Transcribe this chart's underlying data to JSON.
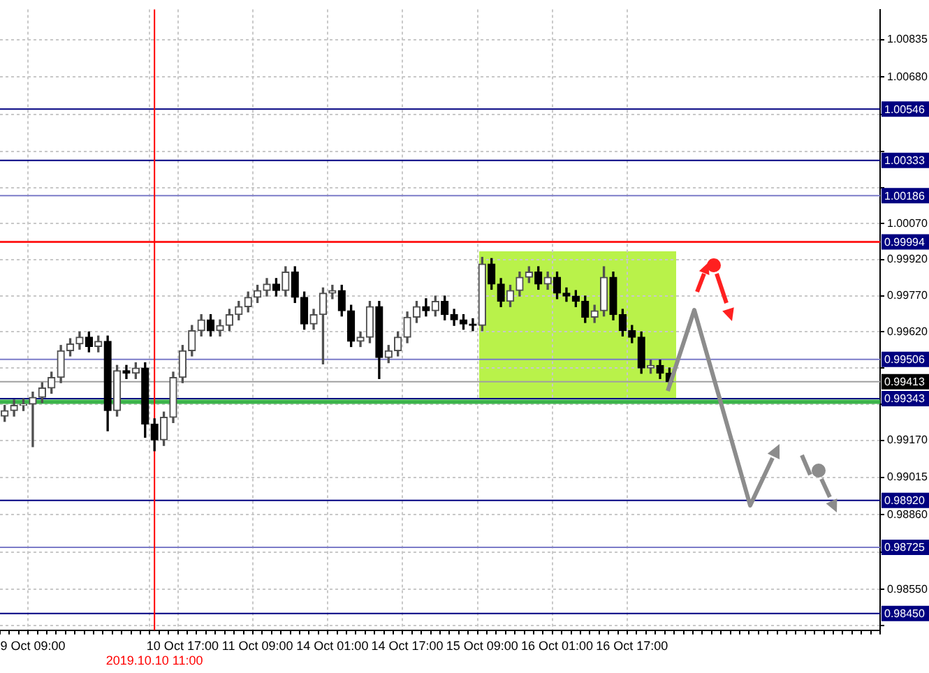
{
  "chart_data": {
    "type": "candlestick",
    "categories": [
      null,
      null,
      null,
      "9 Oct 09:00",
      null,
      null,
      null,
      null,
      null,
      null,
      null,
      null,
      null,
      null,
      null,
      null,
      "2019.10.10 11:00",
      null,
      null,
      "10 Oct 17:00",
      null,
      null,
      null,
      null,
      null,
      null,
      null,
      "11 Oct 09:00",
      null,
      null,
      null,
      null,
      null,
      null,
      null,
      "14 Oct 01:00",
      null,
      null,
      null,
      null,
      null,
      null,
      null,
      "14 Oct 17:00",
      null,
      null,
      null,
      null,
      null,
      null,
      null,
      "15 Oct 09:00",
      null,
      null,
      null,
      null,
      null,
      null,
      null,
      "16 Oct 01:00",
      null,
      null,
      null,
      null,
      null,
      null,
      null,
      "16 Oct 17:00",
      null,
      null,
      null,
      null,
      null,
      null,
      null,
      null,
      null,
      null,
      null,
      null,
      null,
      null,
      null,
      null,
      null,
      null,
      null,
      null,
      null,
      null,
      null,
      null,
      null,
      null
    ],
    "ohlc": [
      [
        0.9927,
        0.99315,
        0.99248,
        0.99293
      ],
      [
        0.99293,
        0.99337,
        0.9927,
        0.99315
      ],
      [
        0.99315,
        0.99342,
        0.99293,
        0.9932
      ],
      [
        0.9932,
        0.9937,
        0.99143,
        0.99348
      ],
      [
        0.99348,
        0.99409,
        0.99326,
        0.99387
      ],
      [
        0.99387,
        0.99453,
        0.99365,
        0.99431
      ],
      [
        0.99431,
        0.99564,
        0.99409,
        0.99542
      ],
      [
        0.99542,
        0.99592,
        0.9952,
        0.9957
      ],
      [
        0.9957,
        0.9962,
        0.99548,
        0.99598
      ],
      [
        0.99598,
        0.9962,
        0.99537,
        0.99559
      ],
      [
        0.99559,
        0.99603,
        0.99537,
        0.99581
      ],
      [
        0.99581,
        0.99603,
        0.99209,
        0.99293
      ],
      [
        0.99293,
        0.99481,
        0.9927,
        0.99459
      ],
      [
        0.99459,
        0.99481,
        0.99426,
        0.99448
      ],
      [
        0.99448,
        0.99492,
        0.99426,
        0.9947
      ],
      [
        0.9947,
        0.99492,
        0.99182,
        0.99237
      ],
      [
        0.99237,
        0.99259,
        0.99126,
        0.99171
      ],
      [
        0.99171,
        0.99287,
        0.99148,
        0.99265
      ],
      [
        0.99265,
        0.99453,
        0.99243,
        0.99431
      ],
      [
        0.99431,
        0.99564,
        0.99409,
        0.99542
      ],
      [
        0.99542,
        0.99647,
        0.9952,
        0.99625
      ],
      [
        0.99625,
        0.99692,
        0.99603,
        0.9967
      ],
      [
        0.9967,
        0.99692,
        0.99603,
        0.99625
      ],
      [
        0.99625,
        0.9967,
        0.99603,
        0.99647
      ],
      [
        0.99647,
        0.99714,
        0.99625,
        0.99692
      ],
      [
        0.99692,
        0.99747,
        0.9967,
        0.99725
      ],
      [
        0.99725,
        0.99786,
        0.99703,
        0.99764
      ],
      [
        0.99764,
        0.99814,
        0.99742,
        0.99792
      ],
      [
        0.99792,
        0.99842,
        0.99769,
        0.99819
      ],
      [
        0.99819,
        0.99842,
        0.99769,
        0.99792
      ],
      [
        0.99792,
        0.99891,
        0.99769,
        0.99869
      ],
      [
        0.99869,
        0.99891,
        0.99742,
        0.99764
      ],
      [
        0.99764,
        0.99786,
        0.99631,
        0.99653
      ],
      [
        0.99653,
        0.99714,
        0.99631,
        0.99692
      ],
      [
        0.99692,
        0.99803,
        0.99487,
        0.99781
      ],
      [
        0.99781,
        0.99814,
        0.99758,
        0.99792
      ],
      [
        0.99792,
        0.99814,
        0.99686,
        0.99708
      ],
      [
        0.99708,
        0.99731,
        0.99559,
        0.99581
      ],
      [
        0.99581,
        0.9962,
        0.99559,
        0.99598
      ],
      [
        0.99598,
        0.99747,
        0.99575,
        0.99725
      ],
      [
        0.99725,
        0.99747,
        0.99426,
        0.99514
      ],
      [
        0.99514,
        0.99564,
        0.99492,
        0.99542
      ],
      [
        0.99542,
        0.9962,
        0.9952,
        0.99598
      ],
      [
        0.99598,
        0.99703,
        0.99575,
        0.99681
      ],
      [
        0.99681,
        0.99747,
        0.99659,
        0.99725
      ],
      [
        0.99725,
        0.99758,
        0.99686,
        0.99708
      ],
      [
        0.99708,
        0.99769,
        0.99686,
        0.99747
      ],
      [
        0.99747,
        0.99769,
        0.9967,
        0.99692
      ],
      [
        0.99692,
        0.99714,
        0.99647,
        0.9967
      ],
      [
        0.9967,
        0.99692,
        0.99631,
        0.99653
      ],
      [
        0.99653,
        0.99675,
        0.99625,
        0.99647
      ],
      [
        0.99647,
        0.9993,
        0.99625,
        0.99902
      ],
      [
        0.99902,
        0.99925,
        0.99797,
        0.99819
      ],
      [
        0.99819,
        0.99842,
        0.99725,
        0.99747
      ],
      [
        0.99747,
        0.99814,
        0.99725,
        0.99792
      ],
      [
        0.99792,
        0.99869,
        0.99769,
        0.99847
      ],
      [
        0.99847,
        0.99891,
        0.99825,
        0.99869
      ],
      [
        0.99869,
        0.99891,
        0.99797,
        0.99819
      ],
      [
        0.99819,
        0.99869,
        0.99797,
        0.99847
      ],
      [
        0.99847,
        0.99869,
        0.99758,
        0.99781
      ],
      [
        0.99781,
        0.99803,
        0.99747,
        0.99769
      ],
      [
        0.99769,
        0.99792,
        0.99725,
        0.99747
      ],
      [
        0.99747,
        0.99769,
        0.99659,
        0.99681
      ],
      [
        0.99681,
        0.99731,
        0.99659,
        0.99708
      ],
      [
        0.99708,
        0.99891,
        0.99686,
        0.99847
      ],
      [
        0.99847,
        0.99869,
        0.9967,
        0.99692
      ],
      [
        0.99692,
        0.99714,
        0.99603,
        0.99625
      ],
      [
        0.99625,
        0.99647,
        0.99575,
        0.99598
      ],
      [
        0.99598,
        0.9962,
        0.99448,
        0.9947
      ],
      [
        0.9947,
        0.99503,
        0.99448,
        0.99481
      ],
      [
        0.99481,
        0.99503,
        0.99426,
        0.99448
      ],
      [
        0.99448,
        0.9947,
        0.99392,
        0.99413
      ],
      null,
      null,
      null,
      null,
      null,
      null,
      null,
      null,
      null,
      null,
      null,
      null,
      null,
      null,
      null,
      null,
      null,
      null,
      null,
      null,
      null,
      null
    ],
    "ylim": [
      0.9838,
      1.0096
    ],
    "yticks": [
      1.00835,
      {
        "value": 1.0068,
        "label": "1.00680"
      },
      {
        "value": 1.00525,
        "label": null
      },
      {
        "value": 1.0037,
        "label": null
      },
      {
        "value": 1.0022,
        "label": null
      },
      {
        "value": 1.0007,
        "label": "1.00070"
      },
      {
        "value": 0.9992,
        "label": "0.99920"
      },
      {
        "value": 0.9977,
        "label": "0.99770"
      },
      {
        "value": 0.9962,
        "label": "0.99620"
      },
      {
        "value": 0.9947,
        "label": null
      },
      {
        "value": 0.9932,
        "label": null
      },
      {
        "value": 0.9917,
        "label": "0.99170"
      },
      0.99015,
      {
        "value": 0.9886,
        "label": "0.98860"
      },
      {
        "value": 0.98705,
        "label": null
      },
      {
        "value": 0.9855,
        "label": "0.98550"
      },
      {
        "value": 0.984,
        "label": null
      }
    ],
    "ref_lines": [
      {
        "axis": "y",
        "value": 1.00546,
        "label": "1.00546",
        "color": "#000080"
      },
      {
        "axis": "y",
        "value": 1.00333,
        "label": "1.00333",
        "color": "#000080"
      },
      {
        "axis": "y",
        "value": 1.00186,
        "label": "1.00186",
        "color": "#7b7bc8"
      },
      {
        "axis": "y",
        "value": 0.99994,
        "label": "0.99994",
        "color": "#ff2020"
      },
      {
        "axis": "y",
        "value": 0.99506,
        "label": "0.99506",
        "color": "#7b7bc8"
      },
      {
        "axis": "y",
        "value": 0.99413,
        "label": "0.99413",
        "color": "#a0a0a0"
      },
      {
        "axis": "y",
        "value": 0.99343,
        "label": "0.99343",
        "color": "#000080"
      },
      {
        "axis": "y",
        "value": 0.9933,
        "color": "#3cb44b"
      },
      {
        "axis": "y",
        "value": 0.9892,
        "label": "0.98920",
        "color": "#000080"
      },
      {
        "axis": "y",
        "value": 0.98725,
        "label": "0.98725",
        "color": "#7b7bc8"
      },
      {
        "axis": "y",
        "value": 0.9845,
        "label": "0.98450",
        "color": "#000080"
      },
      {
        "axis": "x",
        "value": "2019.10.10 11:00",
        "color": "#ff0000"
      }
    ],
    "grid": true
  }
}
